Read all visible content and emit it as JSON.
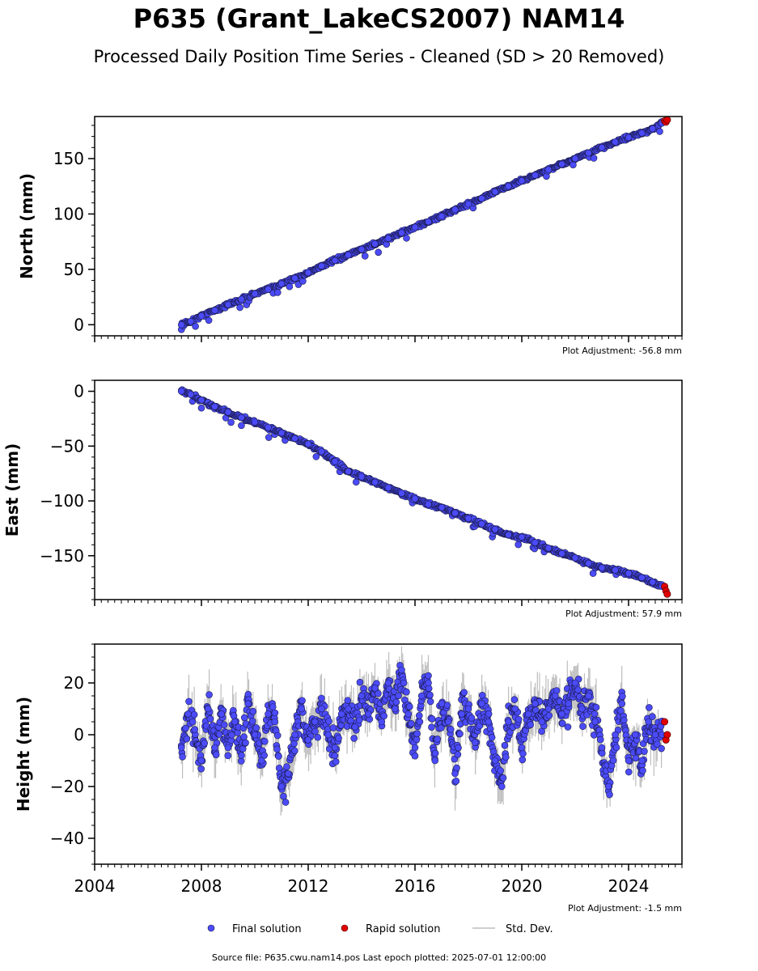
{
  "title": "P635 (Grant_LakeCS2007) NAM14",
  "subtitle": "Processed Daily Position Time Series - Cleaned (SD > 20 Removed)",
  "colors": {
    "final": "#4b4bfa",
    "rapid": "#e00000",
    "stddev": "#bdbdbd",
    "stddev_dense": "#555555"
  },
  "legend": {
    "final": "Final solution",
    "rapid": "Rapid solution",
    "stddev": "Std. Dev."
  },
  "footer": "Source file: P635.cwu.nam14.pos  Last epoch plotted: 2025-07-01 12:00:00",
  "chart_data": [
    {
      "type": "scatter",
      "ylabel": "North (mm)",
      "adjustment": "Plot Adjustment: -56.8 mm",
      "xlim": [
        2004.0,
        2026.0
      ],
      "ylim": [
        -10,
        188
      ],
      "yticks": [
        0,
        50,
        100,
        150
      ],
      "ytick_labels": [
        "0",
        "50",
        "100",
        "150"
      ],
      "xtick_labels_shown": false,
      "series": [
        {
          "name": "Final solution",
          "x": [
            2007.25,
            2007.6,
            2008.0,
            2008.5,
            2009.0,
            2009.5,
            2010.0,
            2010.5,
            2011.0,
            2011.5,
            2012.0,
            2012.5,
            2013.0,
            2013.5,
            2014.0,
            2014.5,
            2015.0,
            2015.5,
            2016.0,
            2016.5,
            2017.0,
            2017.5,
            2018.0,
            2018.5,
            2019.0,
            2019.5,
            2020.0,
            2020.5,
            2021.0,
            2021.5,
            2022.0,
            2022.5,
            2023.0,
            2023.5,
            2024.0,
            2024.5,
            2024.9,
            2025.25
          ],
          "y": [
            0,
            3,
            8,
            13,
            18,
            23,
            28,
            32,
            37,
            42,
            47,
            53,
            58,
            63,
            68,
            73,
            78,
            83,
            88,
            93,
            98,
            104,
            109,
            114,
            120,
            125,
            130,
            135,
            140,
            145,
            150,
            155,
            160,
            165,
            169,
            173,
            177,
            182
          ]
        },
        {
          "name": "Rapid solution",
          "x": [
            2025.35,
            2025.4,
            2025.45
          ],
          "y": [
            184,
            183,
            185
          ]
        }
      ]
    },
    {
      "type": "scatter",
      "ylabel": "East (mm)",
      "adjustment": "Plot Adjustment: 57.9 mm",
      "xlim": [
        2004.0,
        2026.0
      ],
      "ylim": [
        -190,
        10
      ],
      "yticks": [
        0,
        -50,
        -100,
        -150
      ],
      "ytick_labels": [
        "0",
        "−50",
        "−100",
        "−150"
      ],
      "xtick_labels_shown": false,
      "series": [
        {
          "name": "Final solution",
          "x": [
            2007.25,
            2007.6,
            2008.0,
            2008.5,
            2009.0,
            2009.5,
            2010.0,
            2010.5,
            2011.0,
            2011.5,
            2012.0,
            2012.5,
            2013.0,
            2013.5,
            2014.0,
            2014.5,
            2015.0,
            2015.5,
            2016.0,
            2016.5,
            2017.0,
            2017.5,
            2018.0,
            2018.5,
            2019.0,
            2019.5,
            2020.0,
            2020.5,
            2021.0,
            2021.5,
            2022.0,
            2022.5,
            2023.0,
            2023.5,
            2024.0,
            2024.5,
            2024.9,
            2025.25
          ],
          "y": [
            0,
            -3,
            -8,
            -14,
            -19,
            -24,
            -28,
            -33,
            -38,
            -43,
            -48,
            -55,
            -64,
            -73,
            -78,
            -83,
            -88,
            -93,
            -98,
            -103,
            -106,
            -111,
            -116,
            -121,
            -126,
            -131,
            -133,
            -138,
            -143,
            -148,
            -152,
            -157,
            -161,
            -163,
            -166,
            -170,
            -174,
            -178
          ]
        },
        {
          "name": "Rapid solution",
          "x": [
            2025.35,
            2025.4,
            2025.45
          ],
          "y": [
            -178,
            -182,
            -185
          ]
        }
      ]
    },
    {
      "type": "scatter",
      "ylabel": "Height (mm)",
      "adjustment": "Plot Adjustment: -1.5 mm",
      "xlim": [
        2004.0,
        2026.0
      ],
      "ylim": [
        -50,
        35
      ],
      "yticks": [
        20,
        0,
        -20,
        -40
      ],
      "ytick_labels": [
        "20",
        "0",
        "−20",
        "−40"
      ],
      "xticks": [
        2004,
        2008,
        2012,
        2016,
        2020,
        2024
      ],
      "xtick_labels": [
        "2004",
        "2008",
        "2012",
        "2016",
        "2020",
        "2024"
      ],
      "xtick_labels_shown": true,
      "series": [
        {
          "name": "Final solution",
          "x": [
            2007.25,
            2007.5,
            2007.75,
            2008.0,
            2008.25,
            2008.5,
            2008.75,
            2009.0,
            2009.25,
            2009.5,
            2009.75,
            2010.0,
            2010.25,
            2010.5,
            2010.75,
            2011.0,
            2011.25,
            2011.5,
            2011.75,
            2012.0,
            2012.25,
            2012.5,
            2012.75,
            2013.0,
            2013.25,
            2013.5,
            2013.75,
            2014.0,
            2014.25,
            2014.5,
            2014.75,
            2015.0,
            2015.25,
            2015.5,
            2015.75,
            2016.0,
            2016.25,
            2016.5,
            2016.75,
            2017.0,
            2017.25,
            2017.5,
            2017.75,
            2018.0,
            2018.25,
            2018.5,
            2018.75,
            2019.0,
            2019.25,
            2019.5,
            2019.75,
            2020.0,
            2020.25,
            2020.5,
            2020.75,
            2021.0,
            2021.25,
            2021.5,
            2021.75,
            2022.0,
            2022.25,
            2022.5,
            2022.75,
            2023.0,
            2023.25,
            2023.5,
            2023.75,
            2024.0,
            2024.25,
            2024.5,
            2024.75,
            2025.0,
            2025.25
          ],
          "y": [
            -5,
            8,
            2,
            -10,
            10,
            -5,
            8,
            -5,
            5,
            -8,
            12,
            0,
            -10,
            8,
            5,
            -20,
            -15,
            0,
            10,
            -2,
            5,
            10,
            0,
            -5,
            8,
            10,
            3,
            15,
            8,
            18,
            5,
            20,
            10,
            25,
            8,
            -5,
            15,
            20,
            -10,
            12,
            5,
            -15,
            8,
            10,
            -3,
            12,
            5,
            -10,
            -20,
            5,
            10,
            -5,
            8,
            12,
            5,
            10,
            15,
            8,
            12,
            20,
            10,
            15,
            5,
            -5,
            -20,
            0,
            12,
            -10,
            0,
            -10,
            5,
            0,
            0
          ]
        },
        {
          "name": "Rapid solution",
          "x": [
            2025.35,
            2025.4,
            2025.45
          ],
          "y": [
            5,
            -2,
            0
          ]
        }
      ]
    }
  ]
}
